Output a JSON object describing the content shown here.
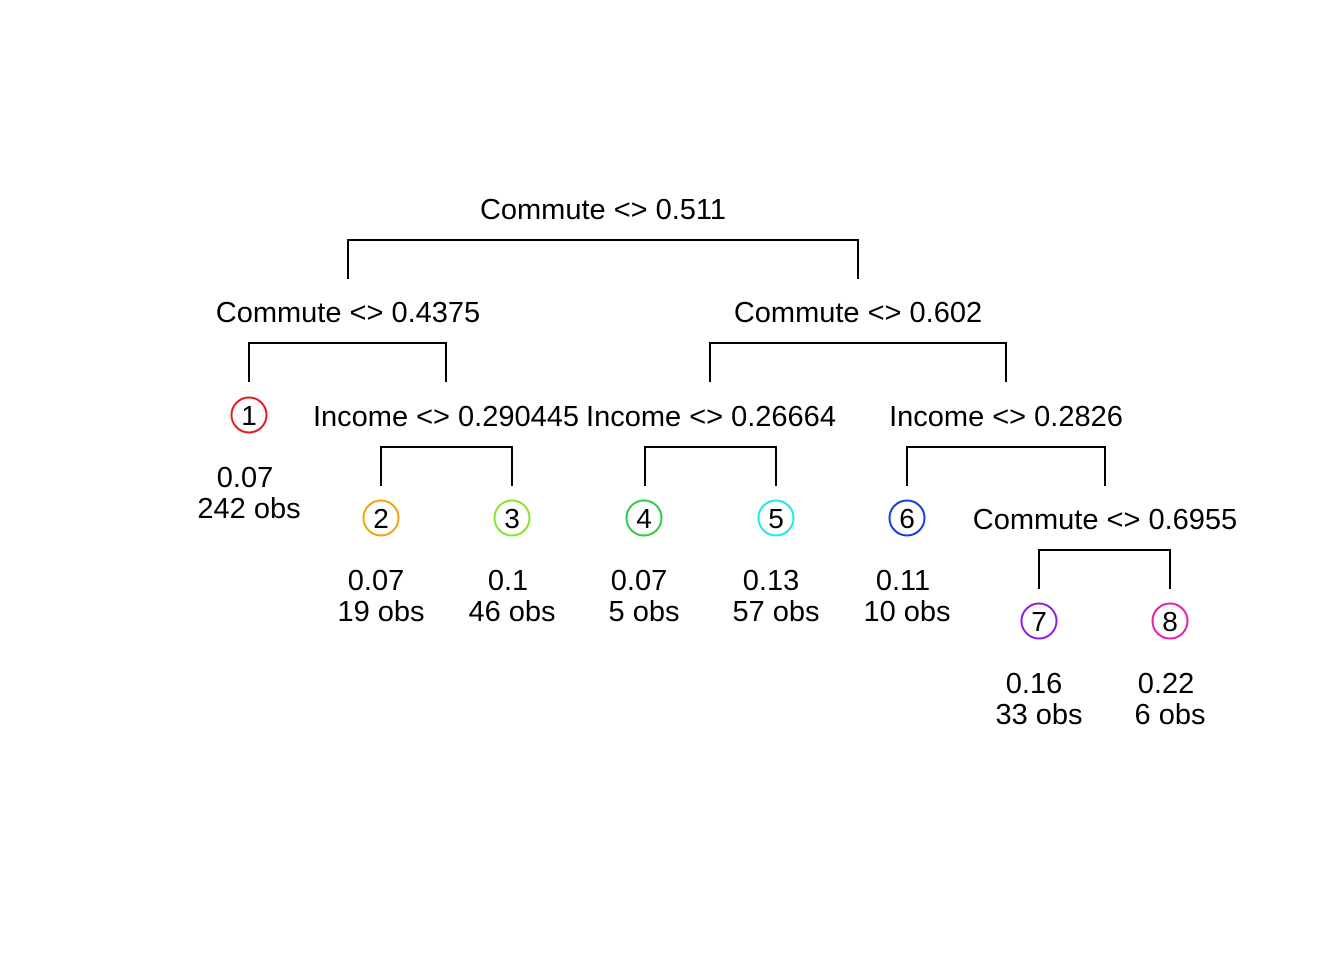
{
  "splits": [
    {
      "id": "s_root",
      "label": "Commute <> 0.511"
    },
    {
      "id": "s_l",
      "label": "Commute <> 0.4375"
    },
    {
      "id": "s_r",
      "label": "Commute <> 0.602"
    },
    {
      "id": "s_lr",
      "label": "Income <> 0.290445"
    },
    {
      "id": "s_rl",
      "label": "Income <> 0.26664"
    },
    {
      "id": "s_rr",
      "label": "Income <> 0.2826"
    },
    {
      "id": "s_rrr",
      "label": "Commute <> 0.6955"
    }
  ],
  "leaves": [
    {
      "num": "1",
      "value": "0.07",
      "obs": "242 obs",
      "color": "#e41a1c"
    },
    {
      "num": "2",
      "value": "0.07",
      "obs": "19 obs",
      "color": "#f0a30a"
    },
    {
      "num": "3",
      "value": "0.1",
      "obs": "46 obs",
      "color": "#80e62e"
    },
    {
      "num": "4",
      "value": "0.07",
      "obs": "5 obs",
      "color": "#2ecc40"
    },
    {
      "num": "5",
      "value": "0.13",
      "obs": "57 obs",
      "color": "#1ee8e8"
    },
    {
      "num": "6",
      "value": "0.11",
      "obs": "10 obs",
      "color": "#1a3adc"
    },
    {
      "num": "7",
      "value": "0.16",
      "obs": "33 obs",
      "color": "#8a1ee6"
    },
    {
      "num": "8",
      "value": "0.22",
      "obs": "6 obs",
      "color": "#e61ea8"
    }
  ]
}
